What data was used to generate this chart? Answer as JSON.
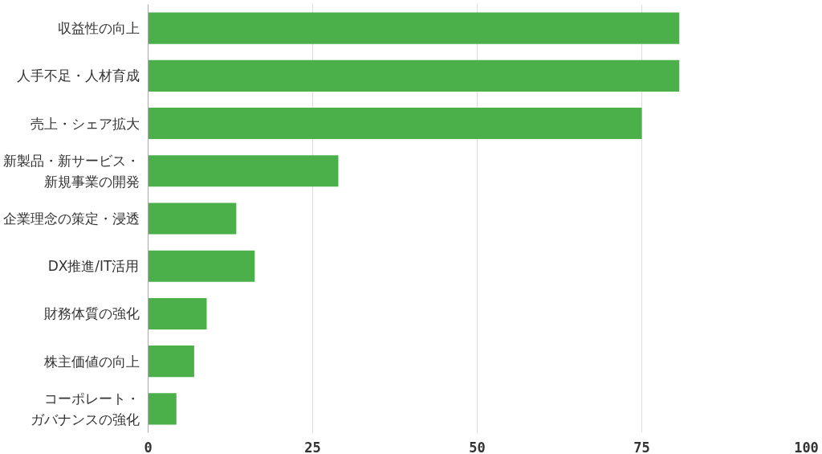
{
  "chart_data": {
    "type": "bar",
    "orientation": "horizontal",
    "categories": [
      "収益性の向上",
      "人手不足・人材育成",
      "売上・シェア拡大",
      "新製品・新サービス・新規事業の開発",
      "企業理念の策定・浸透",
      "DX推進/IT活用",
      "財務体質の強化",
      "株主価値の向上",
      "コーポレート・ガバナンスの強化"
    ],
    "values": [
      80.7,
      80.7,
      75.0,
      28.9,
      13.4,
      16.2,
      8.9,
      7.0,
      4.3
    ],
    "color": "#4cb04a",
    "xlim": [
      0,
      100
    ],
    "xticks": [
      0,
      25,
      50,
      75,
      100
    ],
    "grid": "x"
  }
}
